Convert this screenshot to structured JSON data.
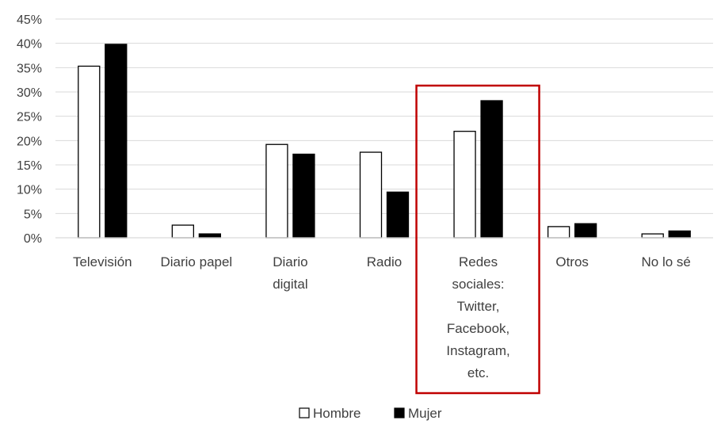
{
  "chart_data": {
    "type": "bar",
    "categories": [
      [
        "Televisión"
      ],
      [
        "Diario papel"
      ],
      [
        "Diario",
        "digital"
      ],
      [
        "Radio"
      ],
      [
        "Redes",
        "sociales:",
        "Twitter,",
        "Facebook,",
        "Instagram,",
        "etc."
      ],
      [
        "Otros"
      ],
      [
        "No lo sé"
      ]
    ],
    "series": [
      {
        "name": "Hombre",
        "values": [
          35.3,
          2.6,
          19.2,
          17.6,
          21.9,
          2.3,
          0.8
        ],
        "color": "#ffffff"
      },
      {
        "name": "Mujer",
        "values": [
          39.8,
          0.8,
          17.2,
          9.4,
          28.2,
          2.9,
          1.4
        ],
        "color": "#000000"
      }
    ],
    "y_ticks": [
      "0%",
      "5%",
      "10%",
      "15%",
      "20%",
      "25%",
      "30%",
      "35%",
      "40%",
      "45%"
    ],
    "ylim": [
      0,
      45
    ],
    "grid": true,
    "legend_position": "bottom",
    "highlighted_category_index": 4,
    "highlight_color": "#c00000"
  }
}
